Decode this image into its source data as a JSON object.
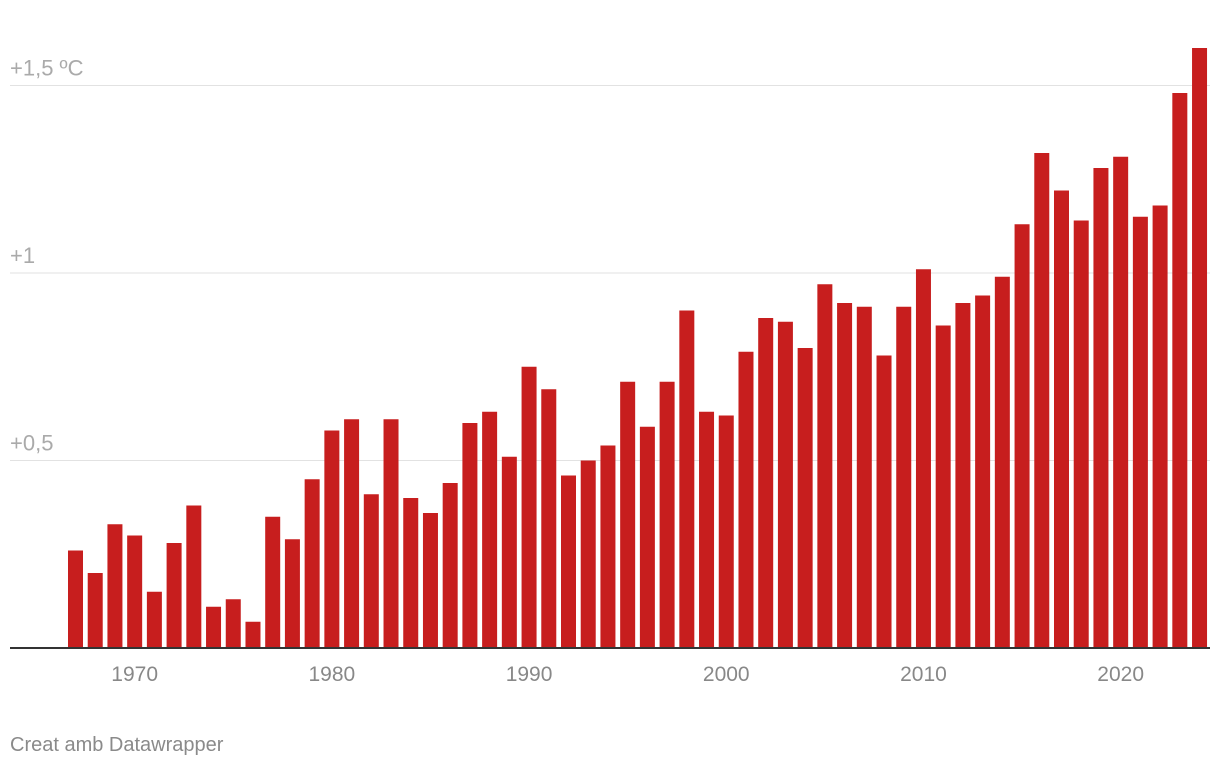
{
  "chart_data": {
    "type": "bar",
    "title": "",
    "xlabel": "",
    "ylabel": "",
    "bar_color": "#c71e1e",
    "ylim": [
      0,
      1.6
    ],
    "yticks": [
      {
        "value": 0.5,
        "label": "+0,5"
      },
      {
        "value": 1.0,
        "label": "+1"
      },
      {
        "value": 1.5,
        "label": "+1,5 ºC"
      }
    ],
    "xticks": [
      "1970",
      "1980",
      "1990",
      "2000",
      "2010",
      "2020"
    ],
    "x": [
      1967,
      1968,
      1969,
      1970,
      1971,
      1972,
      1973,
      1974,
      1975,
      1976,
      1977,
      1978,
      1979,
      1980,
      1981,
      1982,
      1983,
      1984,
      1985,
      1986,
      1987,
      1988,
      1989,
      1990,
      1991,
      1992,
      1993,
      1994,
      1995,
      1996,
      1997,
      1998,
      1999,
      2000,
      2001,
      2002,
      2003,
      2004,
      2005,
      2006,
      2007,
      2008,
      2009,
      2010,
      2011,
      2012,
      2013,
      2014,
      2015,
      2016,
      2017,
      2018,
      2019,
      2020,
      2021,
      2022,
      2023,
      2024
    ],
    "values": [
      0.26,
      0.2,
      0.33,
      0.3,
      0.15,
      0.28,
      0.38,
      0.11,
      0.13,
      0.07,
      0.35,
      0.29,
      0.45,
      0.58,
      0.61,
      0.41,
      0.61,
      0.4,
      0.36,
      0.44,
      0.6,
      0.63,
      0.51,
      0.75,
      0.69,
      0.46,
      0.5,
      0.54,
      0.71,
      0.59,
      0.71,
      0.9,
      0.63,
      0.62,
      0.79,
      0.88,
      0.87,
      0.8,
      0.97,
      0.92,
      0.91,
      0.78,
      0.91,
      1.01,
      0.86,
      0.92,
      0.94,
      0.99,
      1.13,
      1.32,
      1.22,
      1.14,
      1.28,
      1.31,
      1.15,
      1.18,
      1.48,
      1.6
    ]
  },
  "footer": {
    "credit": "Creat amb Datawrapper"
  }
}
